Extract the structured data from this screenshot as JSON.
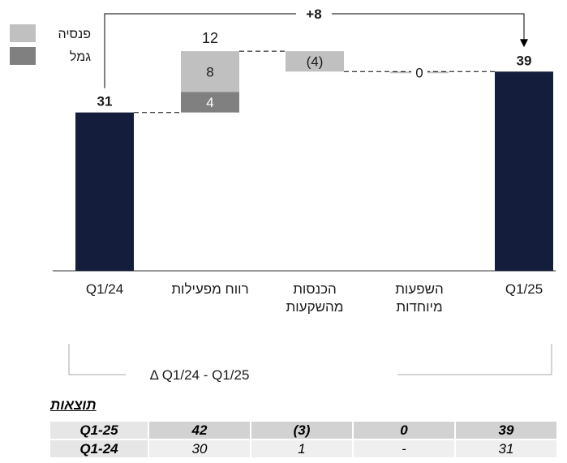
{
  "legend": [
    {
      "label": "פנסיה",
      "color": "#c0c0c0"
    },
    {
      "label": "גמל",
      "color": "#808080"
    }
  ],
  "chart_data": {
    "type": "bar",
    "subtype": "waterfall",
    "categories": [
      "Q1/24",
      "רווח מפעילות",
      "הכנסות\nמהשקעות",
      "השפעות\nמיוחדות",
      "Q1/25"
    ],
    "start_total": 31,
    "end_total": 39,
    "operating_profit": {
      "total_label": "12",
      "series": [
        {
          "name": "גמל",
          "value": 4
        },
        {
          "name": "פנסיה",
          "value": 8
        }
      ]
    },
    "investment_income": {
      "value": -4,
      "label": "(4)"
    },
    "special_effects": {
      "value": 0,
      "label": "0"
    },
    "bar_labels": [
      "31",
      "39"
    ],
    "delta_label": "+8",
    "bracket_label": "Δ Q1/24  - Q1/25",
    "colors": {
      "total": "#141d3b",
      "pension": "#c0c0c0",
      "gemel": "#808080",
      "investments": "#c0c0c0",
      "special": "#c0c0c0"
    },
    "ylim": [
      0,
      43
    ]
  },
  "results": {
    "title": "תוצאות",
    "rows": [
      {
        "label": "Q1-25",
        "values": [
          "42",
          "(3)",
          "0",
          "39"
        ]
      },
      {
        "label": "Q1-24",
        "values": [
          "30",
          "1",
          "-",
          "31"
        ]
      }
    ]
  }
}
